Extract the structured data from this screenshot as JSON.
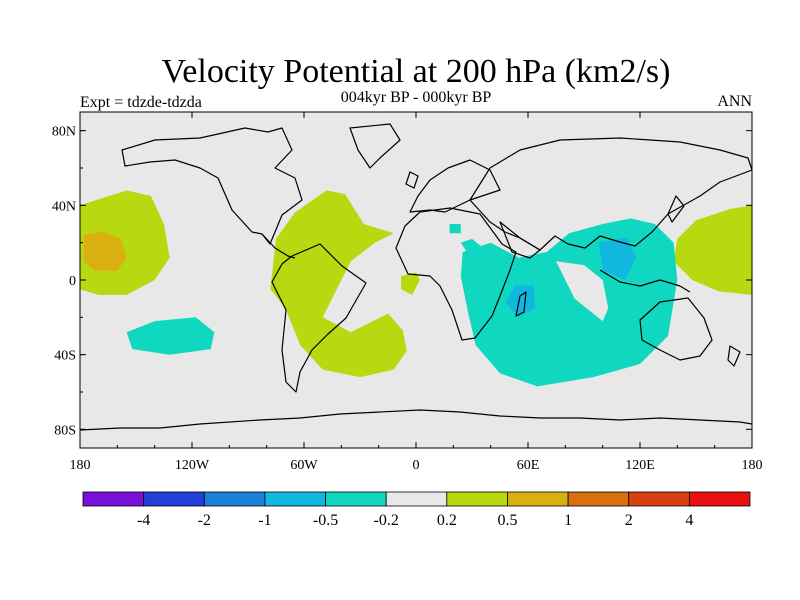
{
  "title": "Velocity Potential at 200 hPa (km2/s)",
  "subtitle": "004kyr BP - 000kyr BP",
  "left_label": "Expt = tdzde-tdzda",
  "right_label": "ANN",
  "x_axis": {
    "ticks": [
      {
        "lon": -180,
        "label": "180"
      },
      {
        "lon": -120,
        "label": "120W"
      },
      {
        "lon": -60,
        "label": "60W"
      },
      {
        "lon": 0,
        "label": "0"
      },
      {
        "lon": 60,
        "label": "60E"
      },
      {
        "lon": 120,
        "label": "120E"
      },
      {
        "lon": 180,
        "label": "180"
      }
    ]
  },
  "y_axis": {
    "ticks": [
      {
        "lat": 80,
        "label": "80N"
      },
      {
        "lat": 40,
        "label": "40N"
      },
      {
        "lat": 0,
        "label": "0"
      },
      {
        "lat": -40,
        "label": "40S"
      },
      {
        "lat": -80,
        "label": "80S"
      }
    ]
  },
  "colorbar": {
    "colors": [
      "#7a10d8",
      "#2040d8",
      "#1a80d8",
      "#10b8e0",
      "#10d8c0",
      "#e8e8e8",
      "#b8d810",
      "#d8b010",
      "#d87010",
      "#d84010",
      "#e81010"
    ],
    "labels": [
      "-4",
      "-2",
      "-1",
      "-0.5",
      "-0.2",
      "0.2",
      "0.5",
      "1",
      "2",
      "4"
    ]
  },
  "chart_data": {
    "type": "map",
    "projection": "cylindrical-equidistant",
    "xlim": [
      -180,
      180
    ],
    "ylim": [
      -90,
      90
    ],
    "background_color": "#e8e8e8",
    "contour_regions": [
      {
        "name": "central-pacific-positive",
        "level": "0.2 to 0.5",
        "color": "#b8d810",
        "points": [
          [
            -180,
            40
          ],
          [
            -155,
            48
          ],
          [
            -142,
            45
          ],
          [
            -135,
            30
          ],
          [
            -132,
            12
          ],
          [
            -140,
            0
          ],
          [
            -155,
            -8
          ],
          [
            -170,
            -8
          ],
          [
            -180,
            -5
          ]
        ]
      },
      {
        "name": "central-pacific-core",
        "level": "0.5 to 1",
        "color": "#d8b010",
        "points": [
          [
            -178,
            24
          ],
          [
            -168,
            26
          ],
          [
            -158,
            22
          ],
          [
            -155,
            12
          ],
          [
            -160,
            5
          ],
          [
            -172,
            5
          ],
          [
            -178,
            10
          ]
        ]
      },
      {
        "name": "western-pacific-positive",
        "level": "0.2 to 0.5",
        "color": "#b8d810",
        "points": [
          [
            180,
            40
          ],
          [
            168,
            38
          ],
          [
            150,
            32
          ],
          [
            140,
            22
          ],
          [
            138,
            10
          ],
          [
            148,
            0
          ],
          [
            162,
            -6
          ],
          [
            180,
            -8
          ]
        ]
      },
      {
        "name": "atlantic-southamerica-positive",
        "level": "0.2 to 0.5",
        "color": "#b8d810",
        "points": [
          [
            -75,
            22
          ],
          [
            -65,
            36
          ],
          [
            -48,
            48
          ],
          [
            -38,
            46
          ],
          [
            -28,
            30
          ],
          [
            -12,
            25
          ],
          [
            -22,
            20
          ],
          [
            -35,
            10
          ],
          [
            -50,
            -20
          ],
          [
            -35,
            -28
          ],
          [
            -15,
            -18
          ],
          [
            -7,
            -27
          ],
          [
            -5,
            -38
          ],
          [
            -12,
            -48
          ],
          [
            -30,
            -52
          ],
          [
            -50,
            -48
          ],
          [
            -62,
            -35
          ],
          [
            -70,
            -15
          ],
          [
            -78,
            -5
          ]
        ]
      },
      {
        "name": "gulf-of-guinea-positive",
        "level": "0.2 to 0.5",
        "color": "#b8d810",
        "points": [
          [
            -8,
            2
          ],
          [
            0,
            4
          ],
          [
            2,
            0
          ],
          [
            -2,
            -8
          ],
          [
            -8,
            -5
          ]
        ]
      },
      {
        "name": "south-pacific-negative",
        "level": "-0.5 to -0.2",
        "color": "#10d8c0",
        "points": [
          [
            -155,
            -28
          ],
          [
            -140,
            -22
          ],
          [
            -118,
            -20
          ],
          [
            -108,
            -28
          ],
          [
            -110,
            -37
          ],
          [
            -132,
            -40
          ],
          [
            -152,
            -37
          ]
        ]
      },
      {
        "name": "indian-ocean-maritime-negative",
        "level": "-0.5 to -0.2",
        "color": "#10d8c0",
        "points": [
          [
            25,
            15
          ],
          [
            40,
            20
          ],
          [
            55,
            12
          ],
          [
            70,
            15
          ],
          [
            82,
            25
          ],
          [
            100,
            30
          ],
          [
            115,
            33
          ],
          [
            128,
            30
          ],
          [
            138,
            20
          ],
          [
            140,
            0
          ],
          [
            135,
            -30
          ],
          [
            120,
            -45
          ],
          [
            95,
            -52
          ],
          [
            65,
            -57
          ],
          [
            45,
            -50
          ],
          [
            32,
            -35
          ],
          [
            28,
            -18
          ],
          [
            24,
            2
          ]
        ]
      },
      {
        "name": "indian-ocean-neutral-hole",
        "level": "-0.2 to 0.2",
        "color": "#e8e8e8",
        "points": [
          [
            75,
            10
          ],
          [
            80,
            0
          ],
          [
            85,
            -10
          ],
          [
            95,
            -18
          ],
          [
            100,
            -22
          ],
          [
            103,
            -15
          ],
          [
            100,
            0
          ],
          [
            90,
            8
          ]
        ]
      },
      {
        "name": "east-africa-core",
        "level": "-1 to -0.5",
        "color": "#10b8e0",
        "points": [
          [
            53,
            -3
          ],
          [
            63,
            -3
          ],
          [
            64,
            -15
          ],
          [
            55,
            -20
          ],
          [
            48,
            -12
          ]
        ]
      },
      {
        "name": "southeast-asia-core",
        "level": "-1 to -0.5",
        "color": "#10b8e0",
        "points": [
          [
            98,
            20
          ],
          [
            113,
            23
          ],
          [
            118,
            12
          ],
          [
            112,
            0
          ],
          [
            100,
            5
          ]
        ]
      },
      {
        "name": "indian-ocean-west-bulge",
        "level": "-0.5 to -0.2",
        "color": "#10d8c0",
        "points": [
          [
            24,
            20
          ],
          [
            30,
            22
          ],
          [
            35,
            18
          ],
          [
            28,
            14
          ]
        ]
      },
      {
        "name": "arabian-sea-small",
        "level": "-0.5 to -0.2",
        "color": "#10d8c0",
        "points": [
          [
            18,
            30
          ],
          [
            24,
            30
          ],
          [
            24,
            25
          ],
          [
            18,
            25
          ]
        ]
      }
    ]
  }
}
